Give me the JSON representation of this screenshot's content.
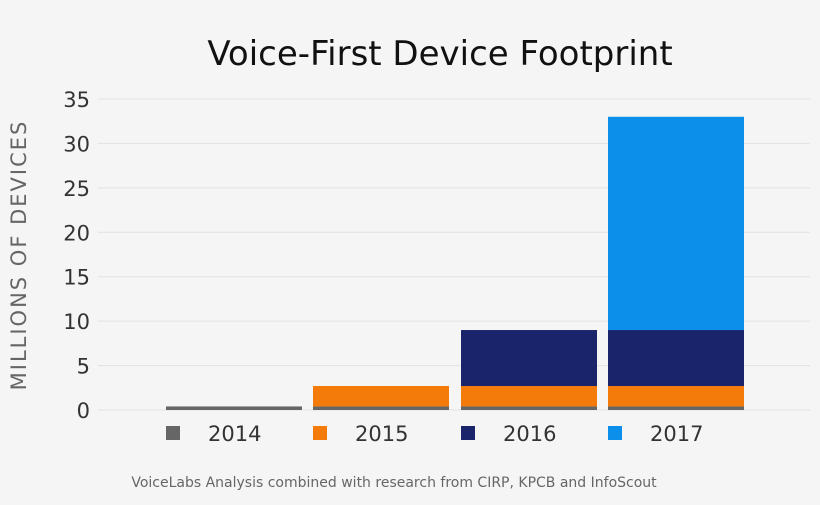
{
  "chart_data": {
    "type": "bar",
    "stacked": true,
    "title": "Voice-First Device Footprint",
    "ylabel": "MILLIONS OF DEVICES",
    "xlabel": "",
    "ylim": [
      0,
      35
    ],
    "yticks": [
      0,
      5,
      10,
      15,
      20,
      25,
      30,
      35
    ],
    "grid": true,
    "legend_position": "bottom",
    "categories": [
      "2014",
      "2015",
      "2016",
      "2017"
    ],
    "series": [
      {
        "name": "2014",
        "color": "#666666",
        "values": [
          0.4,
          0.4,
          0.4,
          0.4
        ]
      },
      {
        "name": "2015",
        "color": "#f47b0a",
        "values": [
          0,
          2.3,
          2.3,
          2.3
        ]
      },
      {
        "name": "2016",
        "color": "#19246b",
        "values": [
          0,
          0,
          6.3,
          6.3
        ]
      },
      {
        "name": "2017",
        "color": "#0b8fea",
        "values": [
          0,
          0,
          0,
          24.0
        ]
      }
    ]
  },
  "footnote": "VoiceLabs Analysis combined with research from CIRP, KPCB and InfoScout"
}
